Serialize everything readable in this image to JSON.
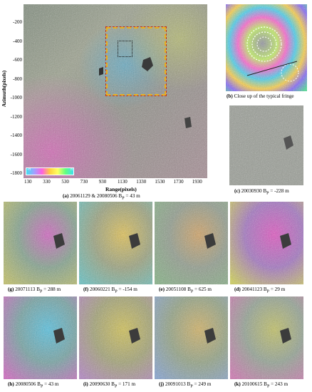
{
  "panel_a": {
    "caption_letter": "(a)",
    "caption_text": "20061129 & 20080506 B",
    "caption_sub": "P",
    "caption_tail": " = 43 m",
    "ylabel": "Azimuth(pixels)",
    "xlabel": "Range(pixels)",
    "yticks": [
      "-200",
      "-400",
      "-600",
      "-800",
      "-1000",
      "-1200",
      "-1400",
      "-1600",
      "-1800"
    ],
    "xticks": [
      "130",
      "330",
      "530",
      "730",
      "930",
      "1130",
      "1330",
      "1530",
      "1730",
      "1930"
    ],
    "colorbar_left": "-π",
    "colorbar_right": "π"
  },
  "panel_b": {
    "caption_letter": "(b)",
    "caption_text": "Close up of the typical fringe"
  },
  "panel_c": {
    "caption_letter": "(c)",
    "caption_text": "20030930 B",
    "caption_sub": "P",
    "caption_tail": " = -228 m"
  },
  "grid": [
    {
      "letter": "(g)",
      "date": "20071113",
      "sub": "P",
      "tail": " = 288 m"
    },
    {
      "letter": "(f)",
      "date": "20060221",
      "sub": "P",
      "tail": " = -154 m"
    },
    {
      "letter": "(e)",
      "date": "20051108",
      "sub": "P",
      "tail": " = 625 m"
    },
    {
      "letter": "(d)",
      "date": "20041123",
      "sub": "P",
      "tail": " = 29 m"
    },
    {
      "letter": "(h)",
      "date": "20080506",
      "sub": "P",
      "tail": " = 43 m"
    },
    {
      "letter": "(i)",
      "date": "20090630",
      "sub": "P",
      "tail": " = 171 m"
    },
    {
      "letter": "(j)",
      "date": "20091013",
      "sub": "P",
      "tail": " = 249 m"
    },
    {
      "letter": "(k)",
      "date": "20100615",
      "sub": "P",
      "tail": " = 243 m"
    }
  ],
  "colors": {
    "dashed_box": "#e8b020",
    "dashed_box_outline": "#c03020",
    "inner_box": "#111111"
  }
}
